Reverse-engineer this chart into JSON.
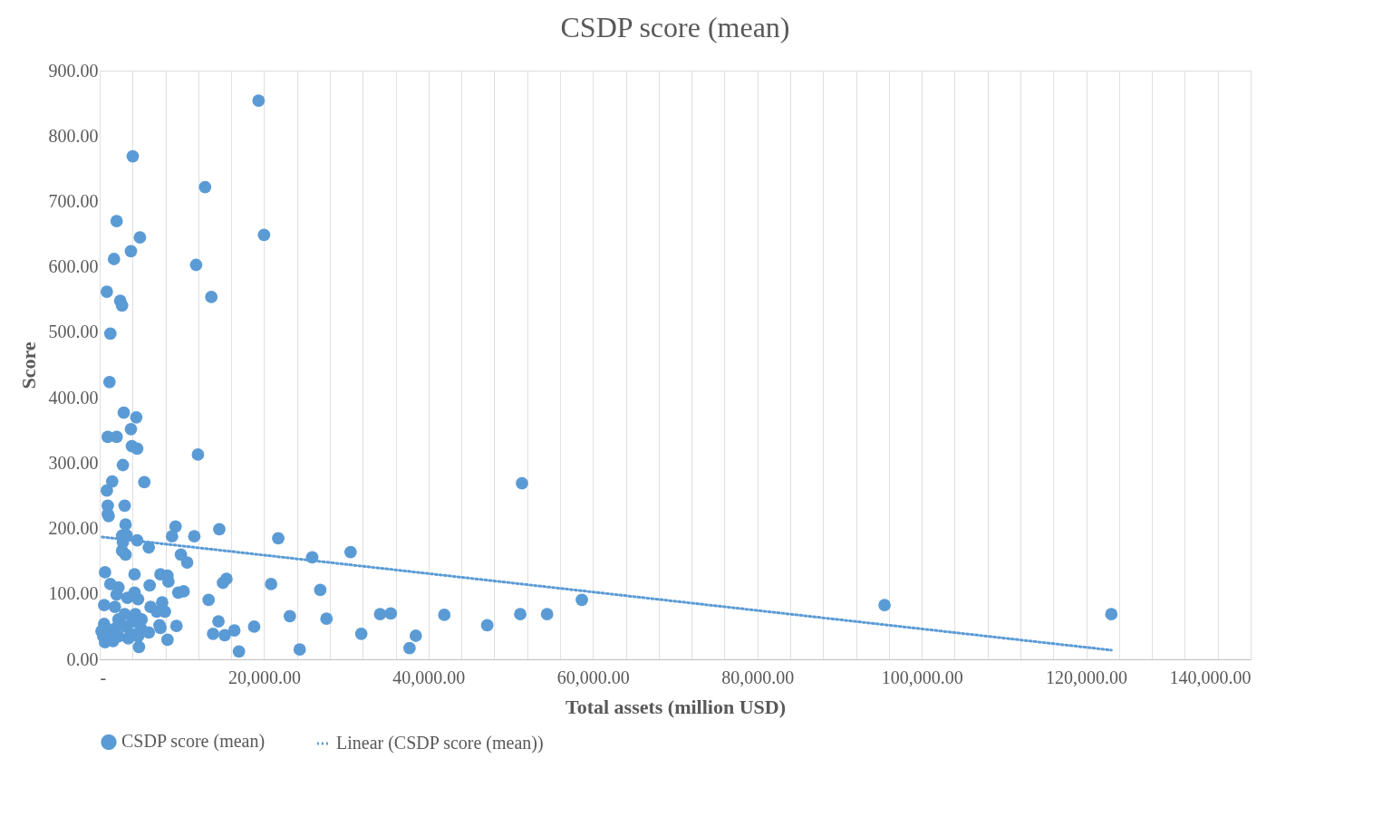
{
  "chart_data": {
    "type": "scatter",
    "title": "CSDP score (mean)",
    "xlabel": "Total assets (million USD)",
    "ylabel": "Score",
    "xlim": [
      0,
      140000
    ],
    "ylim": [
      0,
      900
    ],
    "xticks": [
      {
        "value": 0,
        "label": "-"
      },
      {
        "value": 4000,
        "label": null
      },
      {
        "value": 8000,
        "label": null
      },
      {
        "value": 12000,
        "label": null
      },
      {
        "value": 16000,
        "label": null
      },
      {
        "value": 20000,
        "label": "20,000.00"
      },
      {
        "value": 24000,
        "label": null
      },
      {
        "value": 28000,
        "label": null
      },
      {
        "value": 32000,
        "label": null
      },
      {
        "value": 36000,
        "label": null
      },
      {
        "value": 40000,
        "label": "40,000.00"
      },
      {
        "value": 44000,
        "label": null
      },
      {
        "value": 48000,
        "label": null
      },
      {
        "value": 52000,
        "label": null
      },
      {
        "value": 56000,
        "label": null
      },
      {
        "value": 60000,
        "label": "60,000.00"
      },
      {
        "value": 64000,
        "label": null
      },
      {
        "value": 68000,
        "label": null
      },
      {
        "value": 72000,
        "label": null
      },
      {
        "value": 76000,
        "label": null
      },
      {
        "value": 80000,
        "label": "80,000.00"
      },
      {
        "value": 84000,
        "label": null
      },
      {
        "value": 88000,
        "label": null
      },
      {
        "value": 92000,
        "label": null
      },
      {
        "value": 96000,
        "label": null
      },
      {
        "value": 100000,
        "label": "100,000.00"
      },
      {
        "value": 104000,
        "label": null
      },
      {
        "value": 108000,
        "label": null
      },
      {
        "value": 112000,
        "label": null
      },
      {
        "value": 116000,
        "label": null
      },
      {
        "value": 120000,
        "label": "120,000.00"
      },
      {
        "value": 124000,
        "label": null
      },
      {
        "value": 128000,
        "label": null
      },
      {
        "value": 132000,
        "label": null
      },
      {
        "value": 136000,
        "label": null
      },
      {
        "value": 140000,
        "label": "140,000.00"
      }
    ],
    "yticks": [
      {
        "value": 0,
        "label": "0.00"
      },
      {
        "value": 100,
        "label": "100.00"
      },
      {
        "value": 200,
        "label": "200.00"
      },
      {
        "value": 300,
        "label": "300.00"
      },
      {
        "value": 400,
        "label": "400.00"
      },
      {
        "value": 500,
        "label": "500.00"
      },
      {
        "value": 600,
        "label": "600.00"
      },
      {
        "value": 700,
        "label": "700.00"
      },
      {
        "value": 800,
        "label": "800.00"
      },
      {
        "value": 900,
        "label": "900.00"
      }
    ],
    "grid": "x",
    "legend": "bottom",
    "marker": "circle",
    "series": [
      {
        "name": "CSDP score (mean)",
        "color": "#5b9bd5",
        "x": [
          19330,
          4020,
          12820,
          2060,
          19990,
          4890,
          3800,
          1740,
          11730,
          870,
          2500,
          2720,
          13580,
          1300,
          1190,
          2930,
          4450,
          3800,
          3910,
          4560,
          11950,
          980,
          2060,
          2820,
          1520,
          5430,
          51370,
          870,
          980,
          3040,
          980,
          1090,
          3150,
          9230,
          14550,
          2720,
          3260,
          8800,
          11510,
          21720,
          4560,
          2820,
          5970,
          2720,
          3150,
          30520,
          25850,
          9880,
          10640,
          650,
          4240,
          7390,
          8250,
          8360,
          1300,
          2280,
          6080,
          14990,
          15420,
          20850,
          26830,
          4240,
          2060,
          9560,
          10210,
          3370,
          13250,
          4670,
          58650,
          540,
          95470,
          7600,
          1850,
          6190,
          7930,
          6950,
          3040,
          4340,
          23130,
          34110,
          35410,
          41920,
          51160,
          54420,
          123060,
          27590,
          540,
          2280,
          5100,
          14450,
          7280,
          9340,
          18790,
          47140,
          1850,
          3150,
          4990,
          7390,
          16380,
          220,
          5970,
          430,
          13790,
          15210,
          31820,
          38450,
          3480,
          1630,
          4670,
          8250,
          650,
          4780,
          16940,
          24330,
          37690,
          2280,
          3800,
          4020,
          1300
        ],
        "values": [
          854,
          769,
          722,
          670,
          649,
          645,
          624,
          612,
          603,
          562,
          548,
          541,
          554,
          498,
          424,
          377,
          370,
          352,
          326,
          322,
          313,
          340,
          340,
          297,
          272,
          271,
          269,
          258,
          235,
          235,
          222,
          219,
          206,
          203,
          199,
          189,
          190,
          188,
          188,
          185,
          182,
          179,
          171,
          166,
          160,
          164,
          156,
          160,
          148,
          133,
          130,
          130,
          128,
          119,
          115,
          110,
          113,
          117,
          123,
          115,
          106,
          102,
          99,
          102,
          104,
          94,
          91,
          92,
          91,
          83,
          83,
          87,
          80,
          80,
          73,
          73,
          69,
          69,
          66,
          69,
          70,
          68,
          69,
          69,
          69,
          62,
          54,
          61,
          61,
          58,
          52,
          51,
          50,
          52,
          47,
          50,
          48,
          48,
          44,
          43,
          41,
          35,
          39,
          37,
          39,
          36,
          32,
          28,
          35,
          30,
          26,
          19,
          12,
          15,
          17,
          35,
          39,
          58,
          41
        ]
      },
      {
        "name": "Linear (CSDP score (mean))",
        "type": "line",
        "color": "#5b9bd5",
        "line_style": "dotted",
        "marker": "none",
        "x": [
          300,
          123060
        ],
        "values": [
          187,
          14
        ]
      }
    ]
  }
}
